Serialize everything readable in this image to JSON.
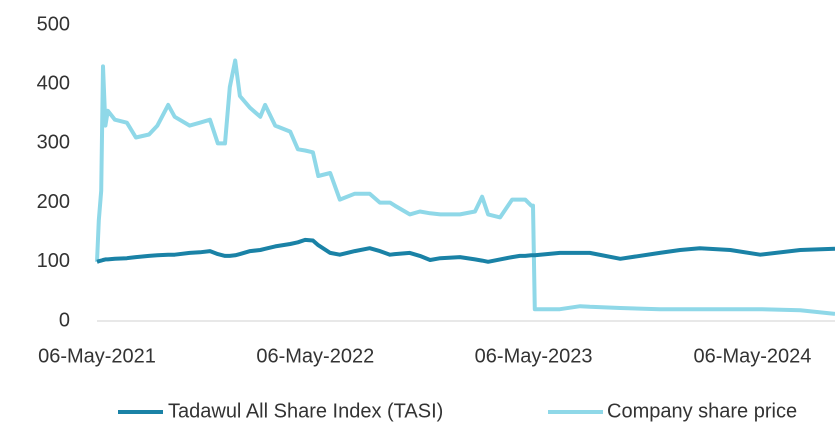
{
  "chart_data": {
    "type": "line",
    "x": [
      "2021-05-06",
      "2021-05-09",
      "2021-05-13",
      "2021-05-16",
      "2021-05-20",
      "2021-05-24",
      "2021-06-05",
      "2021-06-25",
      "2021-07-10",
      "2021-08-01",
      "2021-08-15",
      "2021-09-02",
      "2021-09-13",
      "2021-10-08",
      "2021-10-25",
      "2021-11-11",
      "2021-11-24",
      "2021-12-06",
      "2021-12-14",
      "2021-12-23",
      "2021-12-31",
      "2022-01-17",
      "2022-02-03",
      "2022-02-11",
      "2022-02-28",
      "2022-03-25",
      "2022-04-07",
      "2022-04-19",
      "2022-05-02",
      "2022-05-11",
      "2022-05-31",
      "2022-06-16",
      "2022-07-11",
      "2022-08-05",
      "2022-08-22",
      "2022-09-08",
      "2022-09-16",
      "2022-10-11",
      "2022-10-28",
      "2022-11-14",
      "2022-12-01",
      "2023-01-03",
      "2023-01-28",
      "2023-02-09",
      "2023-02-19",
      "2023-03-11",
      "2023-03-31",
      "2023-04-13",
      "2023-04-22",
      "2023-05-02",
      "2023-05-05",
      "2023-05-08",
      "2023-06-19",
      "2023-07-23",
      "2023-08-08",
      "2023-09-28",
      "2023-12-03",
      "2024-01-06",
      "2024-02-08",
      "2024-03-30",
      "2024-05-19",
      "2024-07-25",
      "2024-09-21"
    ],
    "series": [
      {
        "name": "Tadawul All Share Index (TASI)",
        "color": "#1a82a6",
        "values": [
          100,
          101,
          102,
          103,
          104,
          104,
          105,
          106,
          108,
          110,
          111,
          112,
          112,
          115,
          116,
          118,
          113,
          110,
          110,
          111,
          113,
          118,
          120,
          122,
          126,
          130,
          133,
          137,
          136,
          128,
          115,
          112,
          118,
          123,
          118,
          112,
          113,
          115,
          110,
          103,
          106,
          108,
          104,
          102,
          100,
          104,
          108,
          110,
          110,
          111,
          111,
          111,
          115,
          115,
          115,
          105,
          115,
          120,
          123,
          120,
          112,
          120,
          122
        ]
      },
      {
        "name": "Company share price",
        "color": "#8fd8e8",
        "values": [
          100,
          170,
          220,
          430,
          330,
          355,
          340,
          335,
          310,
          315,
          330,
          365,
          345,
          330,
          335,
          340,
          300,
          300,
          395,
          440,
          380,
          360,
          345,
          365,
          330,
          320,
          290,
          288,
          285,
          245,
          250,
          205,
          215,
          215,
          200,
          200,
          195,
          180,
          185,
          182,
          180,
          180,
          185,
          210,
          180,
          175,
          205,
          205,
          205,
          195,
          195,
          20,
          20,
          25,
          24,
          22,
          20,
          20,
          20,
          20,
          20,
          18,
          12
        ]
      }
    ],
    "xlim": [
      "2021-05-06",
      "2024-09-21"
    ],
    "xticks": [
      {
        "value": "2021-05-06",
        "label": "06-May-2021"
      },
      {
        "value": "2022-05-06",
        "label": "06-May-2022"
      },
      {
        "value": "2023-05-06",
        "label": "06-May-2023"
      },
      {
        "value": "2024-05-06",
        "label": "06-May-2024"
      }
    ],
    "ylim": [
      0,
      500
    ],
    "yticks": [
      0,
      100,
      200,
      300,
      400,
      500
    ],
    "grid": false
  }
}
